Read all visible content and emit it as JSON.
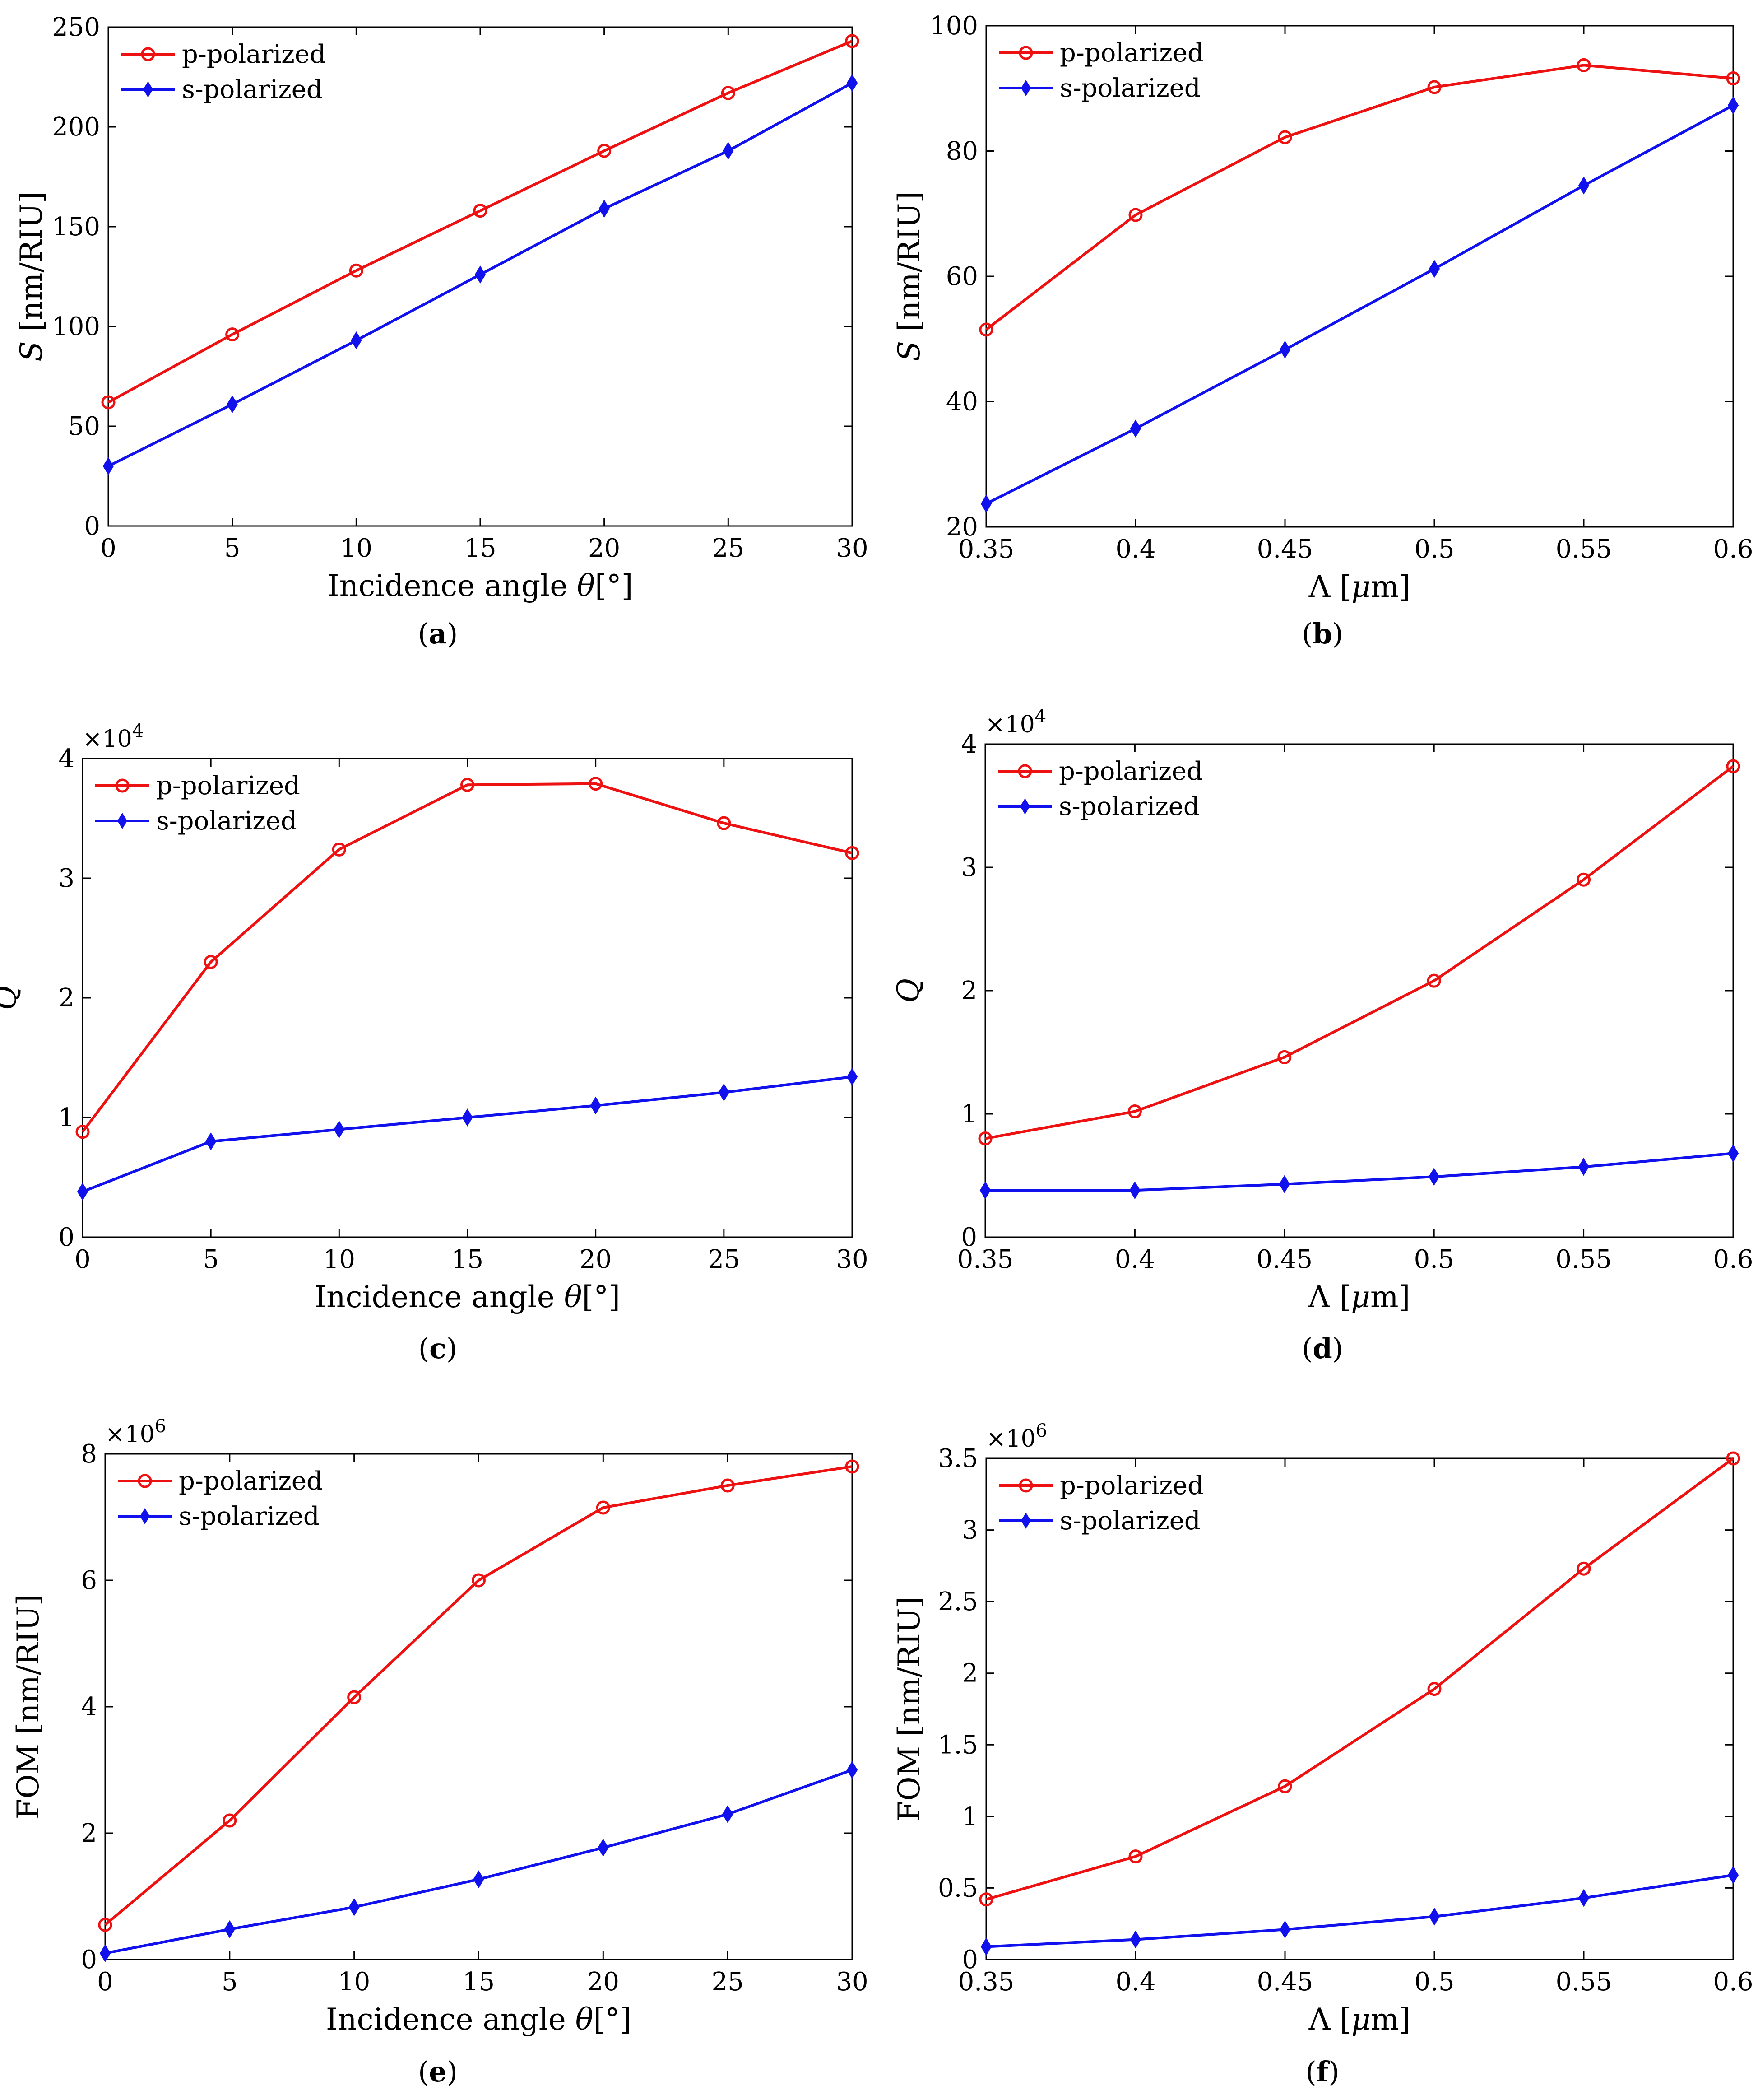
{
  "colors": {
    "p": "#ee1111",
    "s": "#1111ee",
    "axis": "#000000",
    "background": "#ffffff"
  },
  "chart_data": [
    {
      "id": "a",
      "type": "line",
      "caption": "a",
      "ylabel_var": "S",
      "ylabel_unit": " [nm/RIU]",
      "xlabel_text": "Incidence angle ",
      "xlabel_var": "θ",
      "xlabel_unit": "[°]",
      "x": [
        0,
        5,
        10,
        15,
        20,
        25,
        30
      ],
      "xlim": [
        0,
        30
      ],
      "xticks": [
        "0",
        "5",
        "10",
        "15",
        "20",
        "25",
        "30"
      ],
      "ylim": [
        0,
        250
      ],
      "yticks": [
        "0",
        "50",
        "100",
        "150",
        "200",
        "250"
      ],
      "multiplier_base": "",
      "multiplier_exp": "",
      "series": [
        {
          "name": "p-polarized",
          "values": [
            62,
            96,
            128,
            158,
            188,
            217,
            243
          ],
          "marker": "circle"
        },
        {
          "name": "s-polarized",
          "values": [
            30,
            61,
            93,
            126,
            159,
            188,
            222
          ],
          "marker": "diamond"
        }
      ]
    },
    {
      "id": "b",
      "type": "line",
      "caption": "b",
      "ylabel_var": "S",
      "ylabel_unit": " [nm/RIU]",
      "xlabel_text": "Λ [",
      "xlabel_var": "μ",
      "xlabel_unit": "m]",
      "x": [
        0.35,
        0.4,
        0.45,
        0.5,
        0.55,
        0.6
      ],
      "xlim": [
        0.35,
        0.6
      ],
      "xticks": [
        "0.35",
        "0.4",
        "0.45",
        "0.5",
        "0.55",
        "0.6"
      ],
      "ylim": [
        20,
        100
      ],
      "yticks": [
        "20",
        "40",
        "60",
        "80",
        "100"
      ],
      "multiplier_base": "",
      "multiplier_exp": "",
      "series": [
        {
          "name": "p-polarized",
          "values": [
            51.5,
            69.8,
            82.2,
            90.2,
            93.7,
            91.6
          ],
          "marker": "circle"
        },
        {
          "name": "s-polarized",
          "values": [
            23.7,
            35.7,
            48.3,
            61.2,
            74.5,
            87.3
          ],
          "marker": "diamond"
        }
      ]
    },
    {
      "id": "c",
      "type": "line",
      "caption": "c",
      "ylabel_var": "Q",
      "ylabel_unit": "",
      "xlabel_text": "Incidence angle ",
      "xlabel_var": "θ",
      "xlabel_unit": "[°]",
      "x": [
        0,
        5,
        10,
        15,
        20,
        25,
        30
      ],
      "xlim": [
        0,
        30
      ],
      "xticks": [
        "0",
        "5",
        "10",
        "15",
        "20",
        "25",
        "30"
      ],
      "ylim": [
        0,
        4
      ],
      "yticks": [
        "0",
        "1",
        "2",
        "3",
        "4"
      ],
      "multiplier_base": "×10",
      "multiplier_exp": "4",
      "series": [
        {
          "name": "p-polarized",
          "values": [
            0.88,
            2.3,
            3.24,
            3.78,
            3.79,
            3.46,
            3.21
          ],
          "marker": "circle"
        },
        {
          "name": "s-polarized",
          "values": [
            0.38,
            0.8,
            0.9,
            1.0,
            1.1,
            1.21,
            1.34
          ],
          "marker": "diamond"
        }
      ]
    },
    {
      "id": "d",
      "type": "line",
      "caption": "d",
      "ylabel_var": "Q",
      "ylabel_unit": "",
      "xlabel_text": "Λ [",
      "xlabel_var": "μ",
      "xlabel_unit": "m]",
      "x": [
        0.35,
        0.4,
        0.45,
        0.5,
        0.55,
        0.6
      ],
      "xlim": [
        0.35,
        0.6
      ],
      "xticks": [
        "0.35",
        "0.4",
        "0.45",
        "0.5",
        "0.55",
        "0.6"
      ],
      "ylim": [
        0,
        4
      ],
      "yticks": [
        "0",
        "1",
        "2",
        "3",
        "4"
      ],
      "multiplier_base": "×10",
      "multiplier_exp": "4",
      "series": [
        {
          "name": "p-polarized",
          "values": [
            0.8,
            1.02,
            1.46,
            2.08,
            2.9,
            3.82
          ],
          "marker": "circle"
        },
        {
          "name": "s-polarized",
          "values": [
            0.38,
            0.38,
            0.43,
            0.49,
            0.57,
            0.68
          ],
          "marker": "diamond"
        }
      ]
    },
    {
      "id": "e",
      "type": "line",
      "caption": "e",
      "ylabel_var": "",
      "ylabel_unit": "FOM [nm/RIU]",
      "xlabel_text": "Incidence angle ",
      "xlabel_var": "θ",
      "xlabel_unit": "[°]",
      "x": [
        0,
        5,
        10,
        15,
        20,
        25,
        30
      ],
      "xlim": [
        0,
        30
      ],
      "xticks": [
        "0",
        "5",
        "10",
        "15",
        "20",
        "25",
        "30"
      ],
      "ylim": [
        0,
        8
      ],
      "yticks": [
        "0",
        "2",
        "4",
        "6",
        "8"
      ],
      "multiplier_base": "×10",
      "multiplier_exp": "6",
      "series": [
        {
          "name": "p-polarized",
          "values": [
            0.55,
            2.2,
            4.15,
            6.0,
            7.15,
            7.5,
            7.8
          ],
          "marker": "circle"
        },
        {
          "name": "s-polarized",
          "values": [
            0.1,
            0.48,
            0.83,
            1.27,
            1.77,
            2.3,
            3.0
          ],
          "marker": "diamond"
        }
      ]
    },
    {
      "id": "f",
      "type": "line",
      "caption": "f",
      "ylabel_var": "",
      "ylabel_unit": "FOM [nm/RIU]",
      "xlabel_text": "Λ [",
      "xlabel_var": "μ",
      "xlabel_unit": "m]",
      "x": [
        0.35,
        0.4,
        0.45,
        0.5,
        0.55,
        0.6
      ],
      "xlim": [
        0.35,
        0.6
      ],
      "xticks": [
        "0.35",
        "0.4",
        "0.45",
        "0.5",
        "0.55",
        "0.6"
      ],
      "ylim": [
        0,
        3.5
      ],
      "yticks": [
        "0",
        "0.5",
        "1",
        "1.5",
        "2",
        "2.5",
        "3",
        "3.5"
      ],
      "multiplier_base": "×10",
      "multiplier_exp": "6",
      "series": [
        {
          "name": "p-polarized",
          "values": [
            0.42,
            0.72,
            1.21,
            1.89,
            2.73,
            3.5
          ],
          "marker": "circle"
        },
        {
          "name": "s-polarized",
          "values": [
            0.09,
            0.14,
            0.21,
            0.3,
            0.43,
            0.59
          ],
          "marker": "diamond"
        }
      ]
    }
  ]
}
